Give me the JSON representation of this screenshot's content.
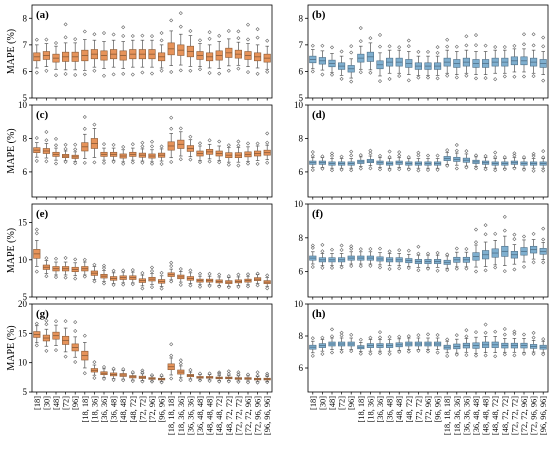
{
  "figure": {
    "x_categories": [
      "[18]",
      "[30]",
      "[48]",
      "[72]",
      "[96]",
      "[18, 18]",
      "[18, 36]",
      "[36, 36]",
      "[36, 48]",
      "[48, 48]",
      "[48, 72]",
      "[72, 72]",
      "[72, 96]",
      "[96, 96]",
      "[18, 18, 18]",
      "[18, 36, 36]",
      "[36, 36, 36]",
      "[36, 48, 48]",
      "[48, 48, 48]",
      "[48, 48, 72]",
      "[48, 72, 72]",
      "[72, 72, 72]",
      "[72, 72, 96]",
      "[72, 96, 96]",
      "[96, 96, 96]"
    ],
    "colors": {
      "orange_fill": "#e6935a",
      "orange_edge": "#8a5a36",
      "blue_fill": "#7fafcf",
      "blue_edge": "#4f6f87"
    }
  },
  "chart_data": [
    {
      "type": "box",
      "panel_label": "(a)",
      "ylabel": "MAPE (%)",
      "ylim": [
        5,
        8.5
      ],
      "yticks": [
        5,
        6,
        7,
        8
      ],
      "color": "orange",
      "medians": [
        6.55,
        6.6,
        6.5,
        6.55,
        6.55,
        6.6,
        6.65,
        6.6,
        6.65,
        6.6,
        6.65,
        6.65,
        6.65,
        6.55,
        6.85,
        6.8,
        6.75,
        6.6,
        6.55,
        6.6,
        6.7,
        6.65,
        6.6,
        6.55,
        6.5
      ],
      "spreads": [
        0.3,
        0.3,
        0.3,
        0.35,
        0.35,
        0.4,
        0.35,
        0.35,
        0.35,
        0.35,
        0.35,
        0.35,
        0.35,
        0.3,
        0.45,
        0.4,
        0.4,
        0.3,
        0.3,
        0.35,
        0.35,
        0.3,
        0.3,
        0.3,
        0.3
      ]
    },
    {
      "type": "box",
      "panel_label": "(b)",
      "ylabel": "",
      "ylim": [
        5,
        8.5
      ],
      "yticks": [
        5,
        6,
        7,
        8
      ],
      "color": "blue",
      "medians": [
        6.45,
        6.4,
        6.3,
        6.2,
        6.1,
        6.5,
        6.55,
        6.25,
        6.35,
        6.35,
        6.3,
        6.2,
        6.2,
        6.2,
        6.35,
        6.3,
        6.35,
        6.3,
        6.3,
        6.35,
        6.35,
        6.4,
        6.4,
        6.35,
        6.3
      ],
      "spreads": [
        0.25,
        0.25,
        0.25,
        0.25,
        0.25,
        0.3,
        0.35,
        0.3,
        0.3,
        0.3,
        0.3,
        0.25,
        0.25,
        0.25,
        0.3,
        0.3,
        0.3,
        0.3,
        0.3,
        0.3,
        0.3,
        0.3,
        0.3,
        0.3,
        0.3
      ]
    },
    {
      "type": "box",
      "panel_label": "(c)",
      "ylabel": "MAPE (%)",
      "ylim": [
        4.5,
        10
      ],
      "yticks": [
        6,
        8,
        10
      ],
      "color": "orange",
      "medians": [
        7.3,
        7.25,
        7.05,
        6.95,
        6.9,
        7.5,
        7.7,
        7.05,
        7.05,
        6.95,
        7.05,
        7.0,
        6.95,
        7.0,
        7.55,
        7.65,
        7.4,
        7.1,
        7.2,
        7.1,
        7.0,
        7.0,
        7.05,
        7.1,
        7.15
      ],
      "spreads": [
        0.3,
        0.3,
        0.25,
        0.2,
        0.2,
        0.5,
        0.6,
        0.25,
        0.25,
        0.25,
        0.25,
        0.25,
        0.25,
        0.25,
        0.5,
        0.5,
        0.35,
        0.3,
        0.3,
        0.3,
        0.3,
        0.3,
        0.3,
        0.3,
        0.3
      ]
    },
    {
      "type": "box",
      "panel_label": "(d)",
      "ylabel": "",
      "ylim": [
        4.5,
        10
      ],
      "yticks": [
        6,
        8,
        10
      ],
      "color": "blue",
      "medians": [
        6.55,
        6.55,
        6.5,
        6.5,
        6.5,
        6.6,
        6.65,
        6.55,
        6.5,
        6.55,
        6.5,
        6.5,
        6.5,
        6.5,
        6.8,
        6.75,
        6.7,
        6.6,
        6.55,
        6.5,
        6.5,
        6.55,
        6.5,
        6.5,
        6.5
      ],
      "spreads": [
        0.2,
        0.2,
        0.2,
        0.2,
        0.2,
        0.2,
        0.2,
        0.2,
        0.2,
        0.2,
        0.2,
        0.2,
        0.2,
        0.2,
        0.25,
        0.25,
        0.25,
        0.2,
        0.2,
        0.2,
        0.2,
        0.2,
        0.2,
        0.2,
        0.2
      ]
    },
    {
      "type": "box",
      "panel_label": "(e)",
      "ylabel": "MAPE (%)",
      "ylim": [
        5,
        17.5
      ],
      "yticks": [
        5,
        10,
        15
      ],
      "color": "orange",
      "medians": [
        10.8,
        9.0,
        8.8,
        8.8,
        8.7,
        8.8,
        8.2,
        7.8,
        7.5,
        7.6,
        7.6,
        7.2,
        7.4,
        7.1,
        8.0,
        7.7,
        7.5,
        7.2,
        7.2,
        7.1,
        7.0,
        7.1,
        7.2,
        7.4,
        7.0
      ],
      "spreads": [
        1.2,
        0.6,
        0.6,
        0.6,
        0.6,
        0.6,
        0.6,
        0.5,
        0.5,
        0.5,
        0.5,
        0.5,
        0.5,
        0.5,
        0.5,
        0.5,
        0.5,
        0.4,
        0.4,
        0.4,
        0.4,
        0.4,
        0.4,
        0.4,
        0.4
      ]
    },
    {
      "type": "box",
      "panel_label": "(f)",
      "ylabel": "",
      "ylim": [
        4.5,
        10
      ],
      "yticks": [
        6,
        8,
        10
      ],
      "color": "blue",
      "medians": [
        6.8,
        6.7,
        6.7,
        6.7,
        6.8,
        6.8,
        6.8,
        6.75,
        6.7,
        6.7,
        6.65,
        6.6,
        6.6,
        6.6,
        6.55,
        6.7,
        6.7,
        6.9,
        7.0,
        7.1,
        7.2,
        7.0,
        7.2,
        7.3,
        7.2
      ],
      "spreads": [
        0.25,
        0.25,
        0.25,
        0.25,
        0.25,
        0.25,
        0.25,
        0.25,
        0.25,
        0.25,
        0.25,
        0.25,
        0.25,
        0.25,
        0.25,
        0.3,
        0.3,
        0.45,
        0.5,
        0.5,
        0.6,
        0.4,
        0.45,
        0.4,
        0.35
      ]
    },
    {
      "type": "box",
      "panel_label": "(g)",
      "ylabel": "MAPE (%)",
      "ylim": [
        5,
        20
      ],
      "yticks": [
        5,
        10,
        15,
        20
      ],
      "color": "orange",
      "medians": [
        14.8,
        14.2,
        14.6,
        13.8,
        12.6,
        11.2,
        8.7,
        8.2,
        8.0,
        7.9,
        7.6,
        7.5,
        7.3,
        7.2,
        9.3,
        8.4,
        7.8,
        7.5,
        7.5,
        7.4,
        7.4,
        7.3,
        7.3,
        7.2,
        7.2
      ],
      "spreads": [
        1.0,
        1.0,
        1.2,
        1.4,
        1.2,
        1.5,
        0.6,
        0.5,
        0.5,
        0.5,
        0.4,
        0.4,
        0.3,
        0.3,
        1.0,
        0.7,
        0.4,
        0.3,
        0.3,
        0.3,
        0.3,
        0.3,
        0.3,
        0.3,
        0.3
      ]
    },
    {
      "type": "box",
      "panel_label": "(h)",
      "ylabel": "",
      "ylim": [
        4.5,
        10
      ],
      "yticks": [
        6,
        8,
        10
      ],
      "color": "blue",
      "medians": [
        7.3,
        7.4,
        7.5,
        7.5,
        7.5,
        7.3,
        7.4,
        7.4,
        7.4,
        7.45,
        7.5,
        7.5,
        7.5,
        7.5,
        7.3,
        7.35,
        7.4,
        7.4,
        7.45,
        7.45,
        7.4,
        7.4,
        7.4,
        7.35,
        7.3
      ],
      "spreads": [
        0.25,
        0.25,
        0.25,
        0.25,
        0.25,
        0.2,
        0.25,
        0.25,
        0.25,
        0.25,
        0.25,
        0.25,
        0.25,
        0.25,
        0.25,
        0.3,
        0.3,
        0.35,
        0.35,
        0.35,
        0.3,
        0.3,
        0.3,
        0.25,
        0.25
      ]
    }
  ]
}
